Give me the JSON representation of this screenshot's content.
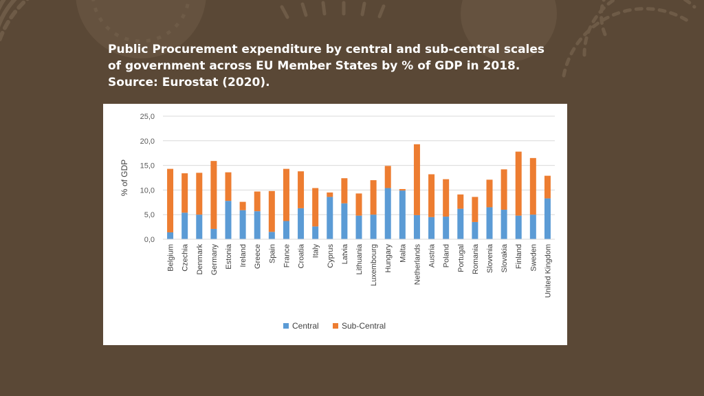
{
  "slide": {
    "title": "Public Procurement expenditure by central and sub-central scales of government across EU Member States by % of GDP in 2018. Source: Eurostat (2020).",
    "colors": {
      "background": "#5a4836",
      "ornament": "#6e5b47",
      "panel": "#ffffff"
    }
  },
  "chart_data": {
    "type": "bar",
    "stacked": true,
    "title": "",
    "xlabel": "",
    "ylabel": "% of GDP",
    "ylim": [
      0,
      25
    ],
    "yticks": [
      "0,0",
      "5,0",
      "10,0",
      "15,0",
      "20,0",
      "25,0"
    ],
    "grid": true,
    "legend": "bottom",
    "categories": [
      "Belgium",
      "Czechia",
      "Denmark",
      "Germany",
      "Estonia",
      "Ireland",
      "Greece",
      "Spain",
      "France",
      "Croatia",
      "Italy",
      "Cyprus",
      "Latvia",
      "Lithuania",
      "Luxembourg",
      "Hungary",
      "Malta",
      "Netherlands",
      "Austria",
      "Poland",
      "Portugal",
      "Romania",
      "Slovenia",
      "Slovakia",
      "Finland",
      "Sweden",
      "United Kingdom"
    ],
    "series": [
      {
        "name": "Central",
        "color": "#5b9bd5",
        "values": [
          1.4,
          5.4,
          5.0,
          2.1,
          7.8,
          5.9,
          5.7,
          1.5,
          3.7,
          6.3,
          2.6,
          8.6,
          7.3,
          4.8,
          5.0,
          10.4,
          9.9,
          4.9,
          4.5,
          4.6,
          6.2,
          3.5,
          6.5,
          6.0,
          4.8,
          5.0,
          8.3
        ]
      },
      {
        "name": "Sub-Central",
        "color": "#ed7d31",
        "values": [
          12.9,
          8.0,
          8.5,
          13.8,
          5.8,
          1.7,
          4.0,
          8.3,
          10.6,
          7.5,
          7.8,
          0.9,
          5.1,
          4.5,
          7.0,
          4.5,
          0.3,
          14.4,
          8.7,
          7.6,
          2.9,
          5.1,
          5.6,
          8.2,
          13.0,
          11.5,
          4.6
        ]
      }
    ]
  }
}
